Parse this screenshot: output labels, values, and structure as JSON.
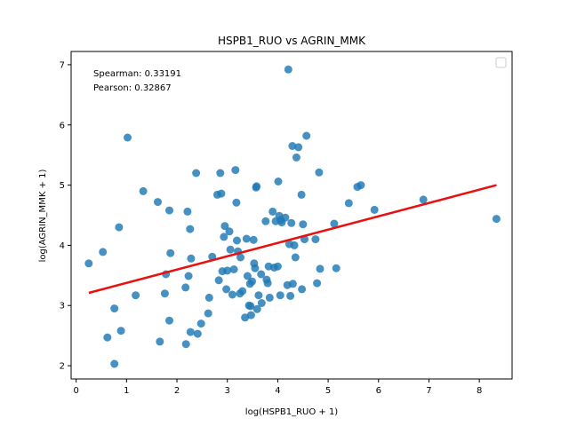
{
  "chart_data": {
    "type": "scatter",
    "title": "HSPB1_RUO vs AGRIN_MMK",
    "xlabel": "log(HSPB1_RUO + 1)",
    "ylabel": "log(AGRIN_MMK + 1)",
    "xlim": [
      -0.1,
      8.65
    ],
    "ylim": [
      1.78,
      7.22
    ],
    "xticks": [
      0,
      1,
      2,
      3,
      4,
      5,
      6,
      7,
      8
    ],
    "yticks": [
      2,
      3,
      4,
      5,
      6,
      7
    ],
    "annotations": [
      "Spearman: 0.33191",
      "Pearson: 0.32867"
    ],
    "legend": {
      "placement": "top-right",
      "entries": []
    },
    "point_color": "#1f77b4",
    "line_color": "#e8110f",
    "regression_line": {
      "x": [
        0.25,
        8.34
      ],
      "y": [
        3.21,
        5.0
      ]
    },
    "points": [
      {
        "x": 0.25,
        "y": 3.7
      },
      {
        "x": 0.53,
        "y": 3.89
      },
      {
        "x": 0.62,
        "y": 2.47
      },
      {
        "x": 0.76,
        "y": 2.95
      },
      {
        "x": 0.76,
        "y": 2.03
      },
      {
        "x": 0.85,
        "y": 4.3
      },
      {
        "x": 0.89,
        "y": 2.58
      },
      {
        "x": 1.02,
        "y": 5.79
      },
      {
        "x": 1.18,
        "y": 3.17
      },
      {
        "x": 1.33,
        "y": 4.9
      },
      {
        "x": 1.62,
        "y": 4.72
      },
      {
        "x": 1.66,
        "y": 2.4
      },
      {
        "x": 1.76,
        "y": 3.2
      },
      {
        "x": 1.78,
        "y": 3.52
      },
      {
        "x": 1.85,
        "y": 4.58
      },
      {
        "x": 1.85,
        "y": 2.75
      },
      {
        "x": 1.87,
        "y": 3.87
      },
      {
        "x": 2.17,
        "y": 3.3
      },
      {
        "x": 2.18,
        "y": 2.36
      },
      {
        "x": 2.21,
        "y": 4.56
      },
      {
        "x": 2.23,
        "y": 3.49
      },
      {
        "x": 2.26,
        "y": 4.27
      },
      {
        "x": 2.27,
        "y": 2.56
      },
      {
        "x": 2.28,
        "y": 3.78
      },
      {
        "x": 2.38,
        "y": 5.2
      },
      {
        "x": 2.41,
        "y": 2.53
      },
      {
        "x": 2.48,
        "y": 2.7
      },
      {
        "x": 2.62,
        "y": 2.87
      },
      {
        "x": 2.64,
        "y": 3.13
      },
      {
        "x": 2.7,
        "y": 3.81
      },
      {
        "x": 2.8,
        "y": 4.84
      },
      {
        "x": 2.83,
        "y": 3.42
      },
      {
        "x": 2.86,
        "y": 5.2
      },
      {
        "x": 2.88,
        "y": 4.86
      },
      {
        "x": 2.9,
        "y": 3.57
      },
      {
        "x": 2.93,
        "y": 4.14
      },
      {
        "x": 2.95,
        "y": 4.32
      },
      {
        "x": 2.98,
        "y": 3.27
      },
      {
        "x": 3.0,
        "y": 3.58
      },
      {
        "x": 3.04,
        "y": 4.23
      },
      {
        "x": 3.06,
        "y": 3.93
      },
      {
        "x": 3.1,
        "y": 3.18
      },
      {
        "x": 3.13,
        "y": 3.6
      },
      {
        "x": 3.16,
        "y": 5.25
      },
      {
        "x": 3.18,
        "y": 4.71
      },
      {
        "x": 3.19,
        "y": 4.08
      },
      {
        "x": 3.21,
        "y": 3.9
      },
      {
        "x": 3.25,
        "y": 3.2
      },
      {
        "x": 3.26,
        "y": 3.8
      },
      {
        "x": 3.3,
        "y": 3.24
      },
      {
        "x": 3.35,
        "y": 2.8
      },
      {
        "x": 3.38,
        "y": 4.11
      },
      {
        "x": 3.4,
        "y": 3.49
      },
      {
        "x": 3.43,
        "y": 3.0
      },
      {
        "x": 3.45,
        "y": 3.36
      },
      {
        "x": 3.46,
        "y": 2.99
      },
      {
        "x": 3.47,
        "y": 2.84
      },
      {
        "x": 3.49,
        "y": 3.4
      },
      {
        "x": 3.52,
        "y": 4.09
      },
      {
        "x": 3.53,
        "y": 3.7
      },
      {
        "x": 3.55,
        "y": 3.62
      },
      {
        "x": 3.57,
        "y": 4.96
      },
      {
        "x": 3.58,
        "y": 4.98
      },
      {
        "x": 3.59,
        "y": 2.94
      },
      {
        "x": 3.62,
        "y": 3.17
      },
      {
        "x": 3.67,
        "y": 3.52
      },
      {
        "x": 3.68,
        "y": 3.04
      },
      {
        "x": 3.76,
        "y": 4.4
      },
      {
        "x": 3.78,
        "y": 3.43
      },
      {
        "x": 3.8,
        "y": 3.37
      },
      {
        "x": 3.82,
        "y": 3.65
      },
      {
        "x": 3.84,
        "y": 3.13
      },
      {
        "x": 3.9,
        "y": 4.56
      },
      {
        "x": 3.93,
        "y": 3.63
      },
      {
        "x": 3.96,
        "y": 4.4
      },
      {
        "x": 4.0,
        "y": 3.65
      },
      {
        "x": 4.01,
        "y": 5.06
      },
      {
        "x": 4.03,
        "y": 4.49
      },
      {
        "x": 4.05,
        "y": 3.17
      },
      {
        "x": 4.06,
        "y": 4.42
      },
      {
        "x": 4.08,
        "y": 4.38
      },
      {
        "x": 4.15,
        "y": 4.46
      },
      {
        "x": 4.19,
        "y": 3.34
      },
      {
        "x": 4.21,
        "y": 6.92
      },
      {
        "x": 4.23,
        "y": 4.02
      },
      {
        "x": 4.25,
        "y": 3.16
      },
      {
        "x": 4.27,
        "y": 4.37
      },
      {
        "x": 4.29,
        "y": 5.65
      },
      {
        "x": 4.3,
        "y": 3.36
      },
      {
        "x": 4.33,
        "y": 4.0
      },
      {
        "x": 4.35,
        "y": 3.8
      },
      {
        "x": 4.37,
        "y": 5.46
      },
      {
        "x": 4.41,
        "y": 5.63
      },
      {
        "x": 4.47,
        "y": 4.84
      },
      {
        "x": 4.48,
        "y": 3.27
      },
      {
        "x": 4.5,
        "y": 4.35
      },
      {
        "x": 4.53,
        "y": 4.1
      },
      {
        "x": 4.57,
        "y": 5.82
      },
      {
        "x": 4.75,
        "y": 4.1
      },
      {
        "x": 4.78,
        "y": 3.37
      },
      {
        "x": 4.82,
        "y": 5.21
      },
      {
        "x": 4.84,
        "y": 3.61
      },
      {
        "x": 5.12,
        "y": 4.36
      },
      {
        "x": 5.16,
        "y": 3.62
      },
      {
        "x": 5.41,
        "y": 4.7
      },
      {
        "x": 5.58,
        "y": 4.97
      },
      {
        "x": 5.65,
        "y": 5.0
      },
      {
        "x": 5.92,
        "y": 4.59
      },
      {
        "x": 6.89,
        "y": 4.76
      },
      {
        "x": 8.34,
        "y": 4.44
      }
    ]
  }
}
